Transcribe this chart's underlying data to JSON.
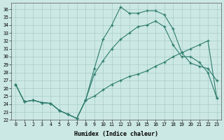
{
  "xlabel": "Humidex (Indice chaleur)",
  "bg_color": "#cce8e4",
  "line_color": "#2e7d6d",
  "grid_color": "#a8ccc8",
  "xlim_min": -0.5,
  "xlim_max": 23.5,
  "ylim_min": 22,
  "ylim_max": 36.8,
  "xticks": [
    0,
    1,
    2,
    3,
    4,
    5,
    6,
    7,
    8,
    9,
    10,
    11,
    12,
    13,
    14,
    15,
    16,
    17,
    18,
    19,
    20,
    21,
    22,
    23
  ],
  "yticks": [
    22,
    23,
    24,
    25,
    26,
    27,
    28,
    29,
    30,
    31,
    32,
    33,
    34,
    35,
    36
  ],
  "line1_x": [
    0,
    1,
    2,
    3,
    4,
    5,
    6,
    7,
    8,
    9,
    10,
    11,
    12,
    13,
    14,
    15,
    16,
    17,
    18,
    19,
    20,
    21,
    22,
    23
  ],
  "line1_y": [
    26.5,
    24.3,
    24.5,
    24.2,
    24.1,
    23.2,
    22.7,
    22.2,
    24.5,
    28.5,
    32.2,
    34.0,
    36.3,
    35.5,
    35.5,
    35.8,
    35.8,
    35.3,
    33.5,
    30.5,
    29.2,
    28.8,
    28.5,
    27.0
  ],
  "line2_x": [
    0,
    1,
    2,
    3,
    4,
    5,
    6,
    7,
    8,
    9,
    10,
    11,
    12,
    13,
    14,
    15,
    16,
    17,
    18,
    19,
    20,
    21,
    22,
    23
  ],
  "line2_y": [
    26.5,
    24.3,
    24.5,
    24.2,
    24.1,
    23.2,
    22.7,
    22.2,
    24.5,
    27.8,
    29.5,
    31.0,
    32.2,
    33.0,
    33.8,
    34.0,
    34.5,
    33.8,
    31.5,
    30.0,
    30.0,
    29.3,
    28.0,
    24.8
  ],
  "line3_x": [
    0,
    1,
    2,
    3,
    4,
    5,
    6,
    7,
    8,
    9,
    10,
    11,
    12,
    13,
    14,
    15,
    16,
    17,
    18,
    19,
    20,
    21,
    22,
    23
  ],
  "line3_y": [
    26.5,
    24.3,
    24.5,
    24.2,
    24.1,
    23.2,
    22.7,
    22.2,
    24.5,
    25.0,
    25.8,
    26.5,
    27.0,
    27.5,
    27.8,
    28.2,
    28.8,
    29.3,
    30.0,
    30.5,
    31.0,
    31.5,
    32.0,
    24.8
  ]
}
